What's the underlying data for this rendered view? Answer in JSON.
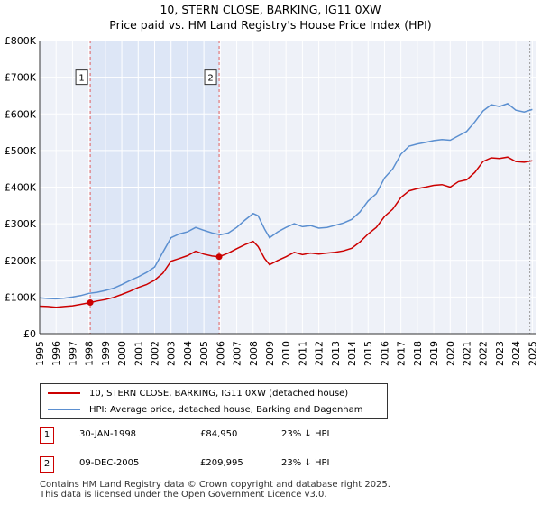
{
  "chart_data": {
    "type": "line",
    "title": "10, STERN CLOSE, BARKING, IG11 0XW",
    "subtitle": "Price paid vs. HM Land Registry's House Price Index (HPI)",
    "xlabel": "",
    "ylabel": "",
    "xlim": [
      1995,
      2025.2
    ],
    "ylim": [
      0,
      800000
    ],
    "y_ticks": [
      0,
      100000,
      200000,
      300000,
      400000,
      500000,
      600000,
      700000,
      800000
    ],
    "y_tick_labels": [
      "£0",
      "£100K",
      "£200K",
      "£300K",
      "£400K",
      "£500K",
      "£600K",
      "£700K",
      "£800K"
    ],
    "x_ticks": [
      1995,
      1996,
      1997,
      1998,
      1999,
      2000,
      2001,
      2002,
      2003,
      2004,
      2005,
      2006,
      2007,
      2008,
      2009,
      2010,
      2011,
      2012,
      2013,
      2014,
      2015,
      2016,
      2017,
      2018,
      2019,
      2020,
      2021,
      2022,
      2023,
      2024,
      2025
    ],
    "x_tick_labels": [
      "1995",
      "1996",
      "1997",
      "1998",
      "1999",
      "2000",
      "2001",
      "2002",
      "2003",
      "2004",
      "2005",
      "2006",
      "2007",
      "2008",
      "2009",
      "2010",
      "2011",
      "2012",
      "2013",
      "2014",
      "2015",
      "2016",
      "2017",
      "2018",
      "2019",
      "2020",
      "2021",
      "2022",
      "2023",
      "2024",
      "2025"
    ],
    "grid": true,
    "shaded_region": [
      1998.08,
      2005.93
    ],
    "series": [
      {
        "name": "10, STERN CLOSE, BARKING, IG11 0XW (detached house)",
        "color": "#cc0000",
        "x": [
          1995.0,
          1995.5,
          1996.0,
          1996.5,
          1997.0,
          1997.5,
          1998.08,
          1998.5,
          1999.0,
          1999.5,
          2000.0,
          2000.5,
          2001.0,
          2001.5,
          2002.0,
          2002.5,
          2003.0,
          2003.5,
          2004.0,
          2004.5,
          2005.0,
          2005.5,
          2005.93,
          2006.5,
          2007.0,
          2007.5,
          2008.0,
          2008.3,
          2008.7,
          2009.0,
          2009.5,
          2010.0,
          2010.5,
          2011.0,
          2011.5,
          2012.0,
          2012.5,
          2013.0,
          2013.5,
          2014.0,
          2014.5,
          2015.0,
          2015.5,
          2016.0,
          2016.5,
          2017.0,
          2017.5,
          2018.0,
          2018.5,
          2019.0,
          2019.5,
          2020.0,
          2020.5,
          2021.0,
          2021.5,
          2022.0,
          2022.5,
          2023.0,
          2023.5,
          2024.0,
          2024.5,
          2025.0
        ],
        "values": [
          75000,
          74000,
          72000,
          74000,
          76000,
          80000,
          84950,
          89000,
          93000,
          99000,
          107000,
          116000,
          126000,
          134000,
          146000,
          165000,
          198000,
          205000,
          213000,
          225000,
          217000,
          212000,
          209995,
          220000,
          232000,
          243000,
          252000,
          238000,
          205000,
          188000,
          200000,
          210000,
          222000,
          216000,
          220000,
          217000,
          220000,
          222000,
          226000,
          233000,
          250000,
          272000,
          290000,
          320000,
          340000,
          372000,
          390000,
          396000,
          400000,
          405000,
          407000,
          400000,
          415000,
          420000,
          440000,
          470000,
          480000,
          478000,
          482000,
          470000,
          468000,
          472000
        ]
      },
      {
        "name": "HPI: Average price, detached house, Barking and Dagenham",
        "color": "#5b8fd0",
        "x": [
          1995.0,
          1995.5,
          1996.0,
          1996.5,
          1997.0,
          1997.5,
          1998.0,
          1998.5,
          1999.0,
          1999.5,
          2000.0,
          2000.5,
          2001.0,
          2001.5,
          2002.0,
          2002.5,
          2003.0,
          2003.5,
          2004.0,
          2004.5,
          2005.0,
          2005.5,
          2006.0,
          2006.5,
          2007.0,
          2007.5,
          2008.0,
          2008.3,
          2008.7,
          2009.0,
          2009.5,
          2010.0,
          2010.5,
          2011.0,
          2011.5,
          2012.0,
          2012.5,
          2013.0,
          2013.5,
          2014.0,
          2014.5,
          2015.0,
          2015.5,
          2016.0,
          2016.5,
          2017.0,
          2017.5,
          2018.0,
          2018.5,
          2019.0,
          2019.5,
          2020.0,
          2020.5,
          2021.0,
          2021.5,
          2022.0,
          2022.5,
          2023.0,
          2023.5,
          2024.0,
          2024.5,
          2025.0
        ],
        "values": [
          98000,
          96000,
          95000,
          97000,
          100000,
          104000,
          110000,
          113000,
          118000,
          124000,
          134000,
          145000,
          155000,
          167000,
          182000,
          222000,
          262000,
          272000,
          278000,
          290000,
          282000,
          275000,
          270000,
          275000,
          290000,
          310000,
          328000,
          322000,
          285000,
          262000,
          278000,
          290000,
          300000,
          292000,
          295000,
          288000,
          290000,
          296000,
          302000,
          312000,
          332000,
          362000,
          382000,
          425000,
          450000,
          490000,
          512000,
          518000,
          522000,
          527000,
          530000,
          528000,
          540000,
          552000,
          578000,
          608000,
          625000,
          620000,
          628000,
          610000,
          605000,
          612000
        ]
      }
    ],
    "annotations": [
      {
        "label": "1",
        "x": 1998.08
      },
      {
        "label": "2",
        "x": 2005.93
      }
    ]
  },
  "legend": {
    "items": [
      {
        "label": "10, STERN CLOSE, BARKING, IG11 0XW (detached house)",
        "color": "#cc0000"
      },
      {
        "label": "HPI: Average price, detached house, Barking and Dagenham",
        "color": "#5b8fd0"
      }
    ]
  },
  "sales": [
    {
      "badge": "1",
      "date": "30-JAN-1998",
      "price": "£84,950",
      "hpi": "23% ↓ HPI"
    },
    {
      "badge": "2",
      "date": "09-DEC-2005",
      "price": "£209,995",
      "hpi": "23% ↓ HPI"
    }
  ],
  "footer": {
    "line1": "Contains HM Land Registry data © Crown copyright and database right 2025.",
    "line2": "This data is licensed under the Open Government Licence v3.0."
  }
}
